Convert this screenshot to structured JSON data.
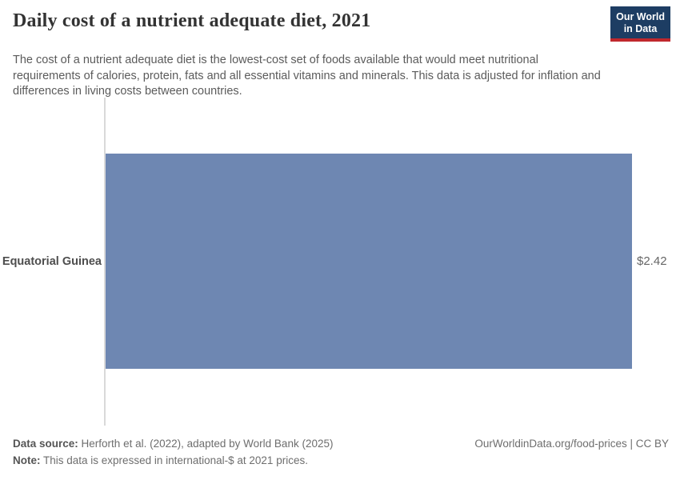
{
  "header": {
    "title": "Daily cost of a nutrient adequate diet, 2021",
    "subtitle": "The cost of a nutrient adequate diet is the lowest-cost set of foods available that would meet nutritional requirements of calories, protein, fats and all essential vitamins and minerals. This data is adjusted for inflation and differences in living costs between countries.",
    "logo": {
      "line1": "Our World",
      "line2": "in Data"
    }
  },
  "chart_data": {
    "type": "bar",
    "orientation": "horizontal",
    "title": "Daily cost of a nutrient adequate diet, 2021",
    "categories": [
      "Equatorial Guinea"
    ],
    "values": [
      2.42
    ],
    "value_labels": [
      "$2.42"
    ],
    "xlim": [
      0,
      2.42
    ],
    "grid": false,
    "legend": false,
    "bar_color": "#6e87b2"
  },
  "footer": {
    "source_label": "Data source:",
    "source_text": "Herforth et al. (2022), adapted by World Bank (2025)",
    "note_label": "Note:",
    "note_text": "This data is expressed in international-$ at 2021 prices.",
    "credit": "OurWorldinData.org/food-prices | CC BY"
  },
  "colors": {
    "bar": "#6e87b2",
    "axis_line": "#d9d9d9",
    "logo_background": "#1d3d63",
    "logo_accent": "#c0282d"
  }
}
